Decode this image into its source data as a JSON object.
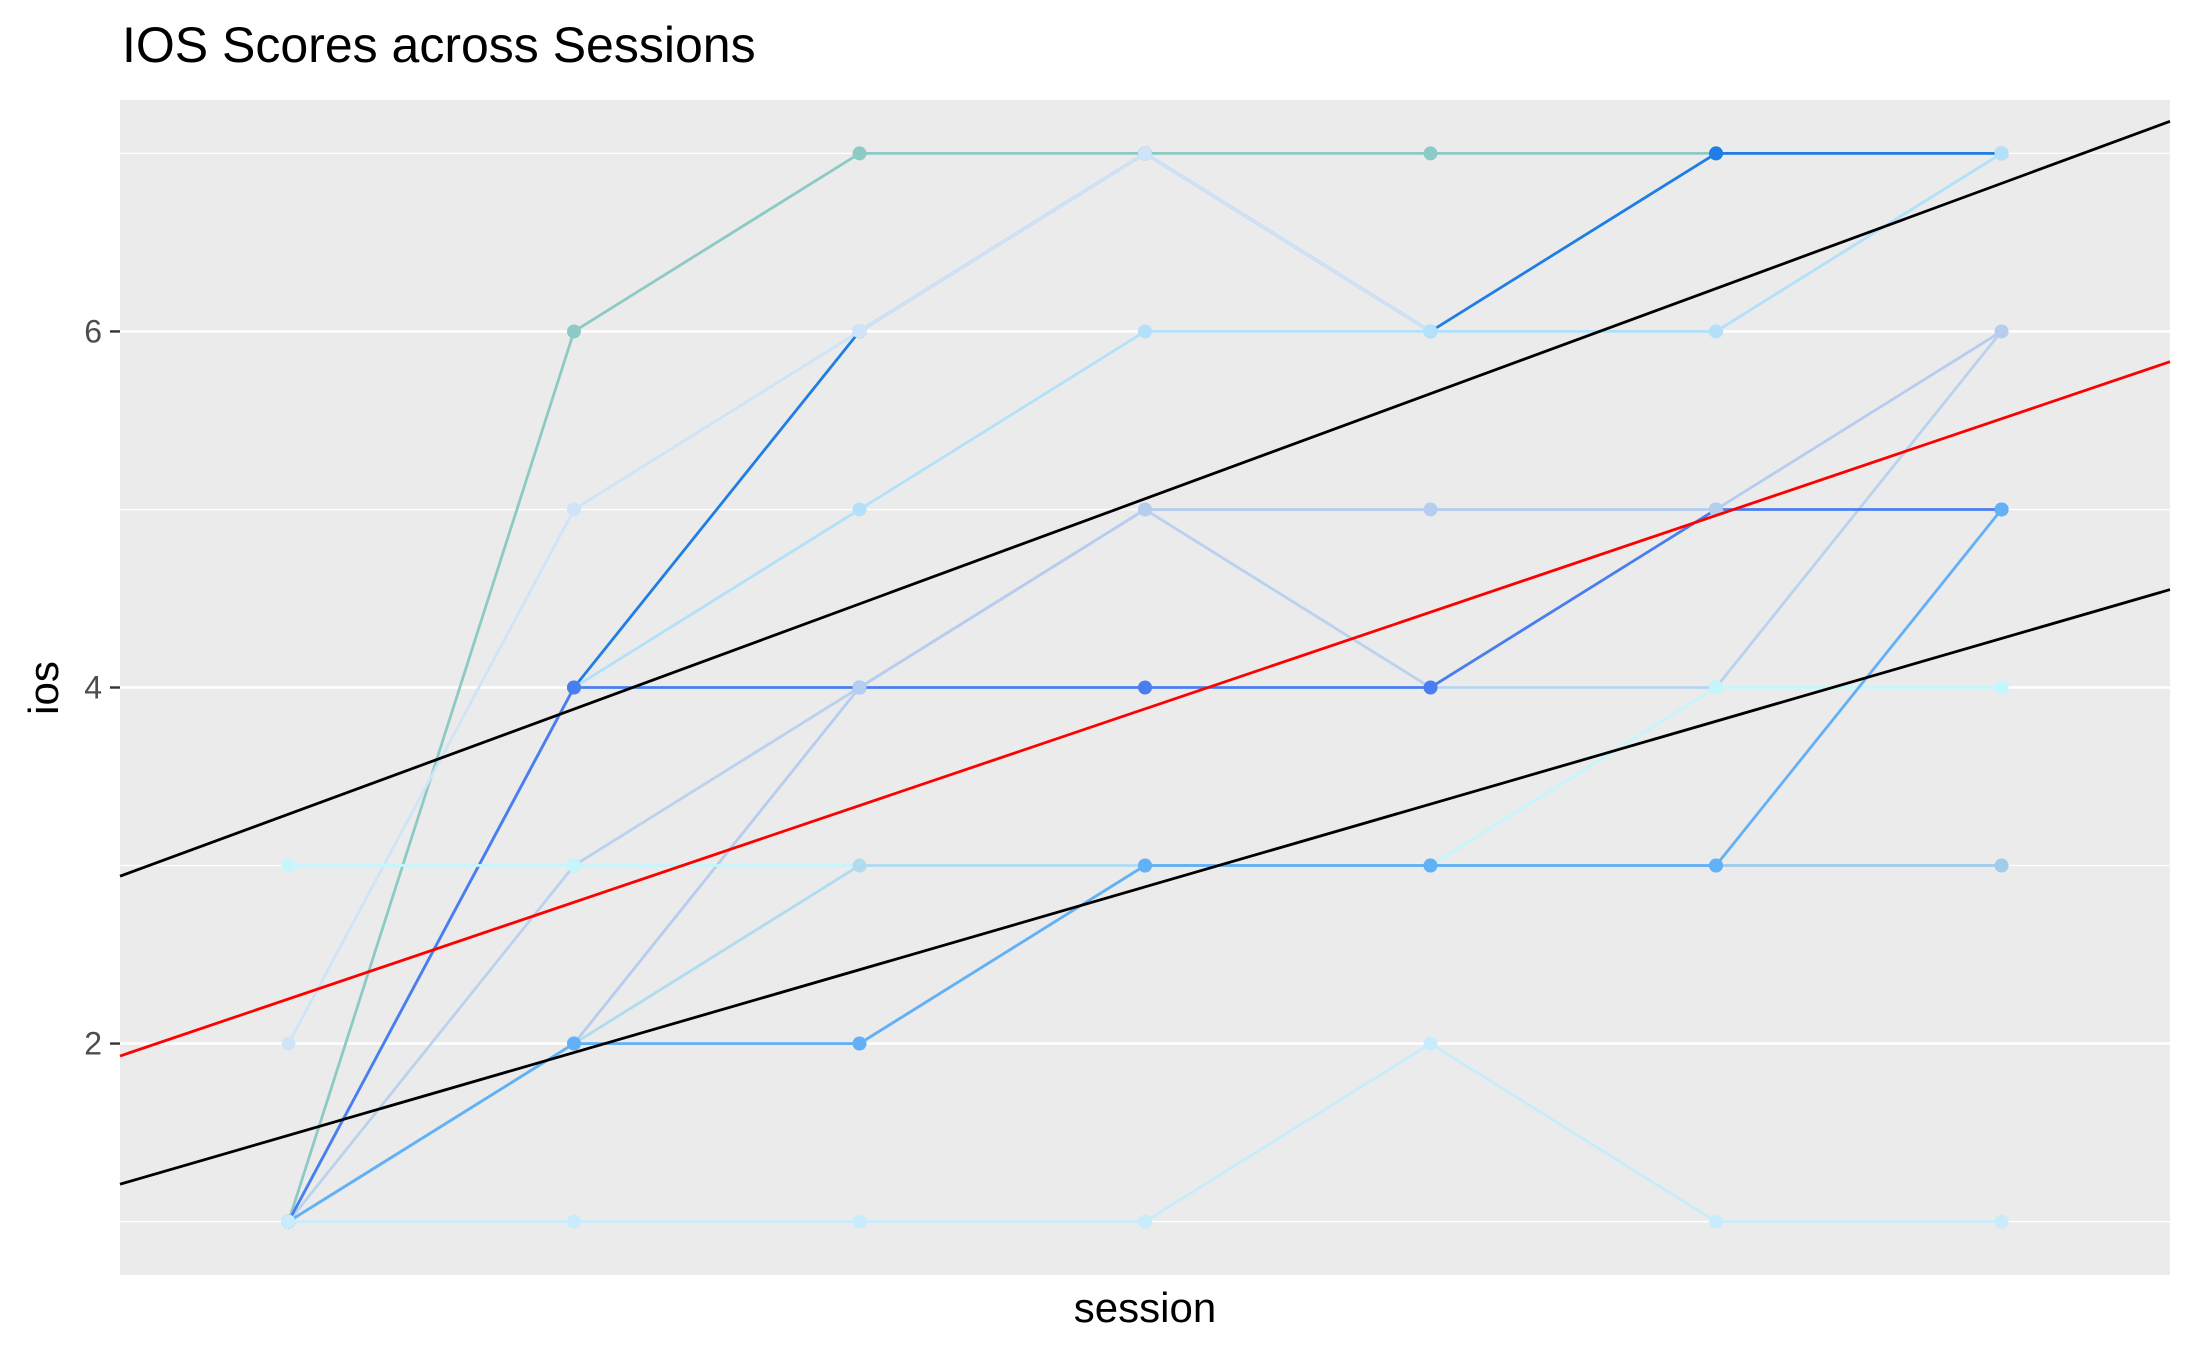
{
  "chart_data": {
    "type": "line",
    "title": "IOS Scores across Sessions",
    "xlabel": "session",
    "ylabel": "ios",
    "x": [
      1,
      2,
      3,
      4,
      5,
      6,
      7
    ],
    "xlim": [
      0.41,
      7.59
    ],
    "ylim": [
      0.7,
      7.3
    ],
    "y_ticks": [
      2,
      4,
      6
    ],
    "x_tick_labels_shown": false,
    "grid": true,
    "legend": "none",
    "colors": {
      "panel_background": "#ebebeb",
      "grid": "#ffffff",
      "regression_line": "#ff0000",
      "interval_lines": "#000000"
    },
    "series": [
      {
        "color": "#8ecac5",
        "values": [
          1,
          6,
          7,
          7,
          7,
          7,
          7
        ]
      },
      {
        "color": "#1e7ee6",
        "values": [
          1,
          4,
          6,
          7,
          6,
          7,
          7
        ]
      },
      {
        "color": "#cfe4f8",
        "values": [
          2,
          5,
          6,
          7,
          6,
          6,
          7
        ]
      },
      {
        "color": "#b3e1fa",
        "values": [
          1,
          4,
          5,
          6,
          6,
          6,
          7
        ]
      },
      {
        "color": "#b9d3ef",
        "values": [
          1,
          3,
          4,
          5,
          4,
          4,
          6
        ]
      },
      {
        "color": "#4a7ef0",
        "values": [
          1,
          4,
          4,
          4,
          4,
          5,
          5
        ]
      },
      {
        "color": "#b6cdf0",
        "values": [
          1,
          2,
          4,
          5,
          5,
          5,
          6
        ]
      },
      {
        "color": "#c5f6fb",
        "values": [
          3,
          3,
          3,
          3,
          3,
          4,
          4
        ]
      },
      {
        "color": "#b0dcf0",
        "values": [
          1,
          2,
          3,
          3,
          3,
          3,
          3
        ]
      },
      {
        "color": "#a3cbea",
        "values": [
          1,
          2,
          2,
          3,
          3,
          3,
          3
        ]
      },
      {
        "color": "#62b0f5",
        "values": [
          1,
          2,
          2,
          3,
          3,
          3,
          5
        ]
      },
      {
        "color": "#c8ecfb",
        "values": [
          1,
          1,
          1,
          1,
          2,
          1,
          1
        ]
      }
    ],
    "reference_lines": [
      {
        "role": "regression",
        "color": "#ff0000",
        "points": [
          [
            0.41,
            1.93
          ],
          [
            7.59,
            5.83
          ]
        ]
      },
      {
        "role": "upper",
        "color": "#000000",
        "points": [
          [
            0.41,
            2.94
          ],
          [
            7.59,
            7.18
          ]
        ]
      },
      {
        "role": "lower",
        "color": "#000000",
        "points": [
          [
            0.41,
            1.21
          ],
          [
            7.59,
            4.55
          ]
        ]
      }
    ]
  }
}
